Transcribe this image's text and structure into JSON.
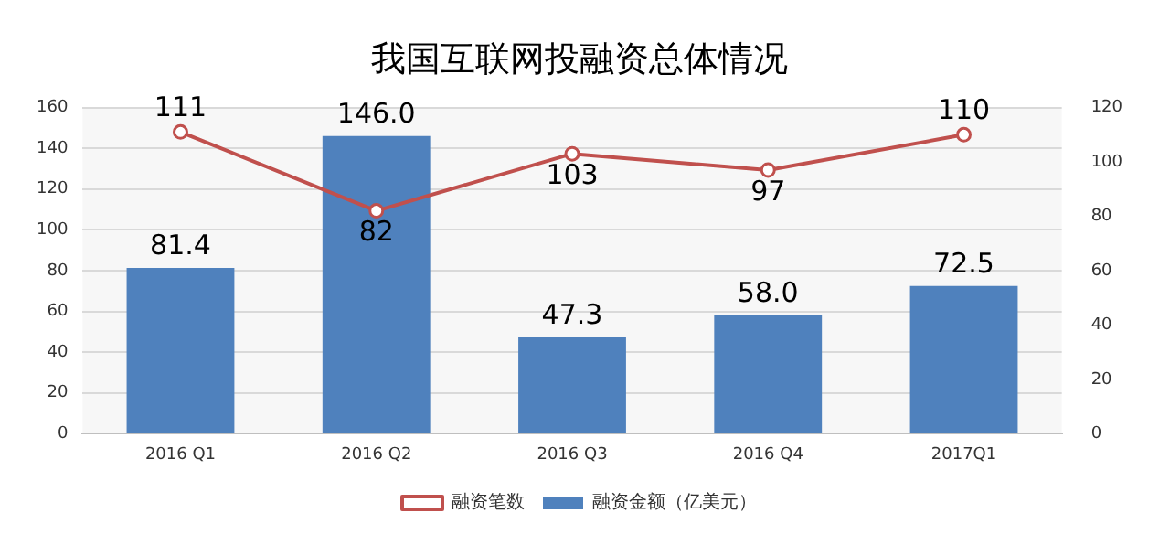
{
  "chart_data": {
    "type": "bar",
    "title": "我国互联网投融资总体情况",
    "categories": [
      "2016 Q1",
      "2016 Q2",
      "2016 Q3",
      "2016 Q4",
      "2017Q1"
    ],
    "series": [
      {
        "name": "融资金额（亿美元）",
        "color": "#4f81bd",
        "values": [
          81.4,
          146.0,
          47.3,
          58.0,
          72.5
        ],
        "value_labels": [
          "81.4",
          "146.0",
          "47.3",
          "58.0",
          "72.5"
        ]
      },
      {
        "name": "融资笔数",
        "type": "line",
        "axis": "y2",
        "color": "#c0504d",
        "marker": "circle",
        "values": [
          111,
          82,
          103,
          97,
          110
        ]
      }
    ],
    "ylim": [
      0,
      160
    ],
    "yticks": [
      0,
      20,
      40,
      60,
      80,
      100,
      120,
      140,
      160
    ],
    "y2lim": [
      0,
      120
    ],
    "y2ticks": [
      0,
      20,
      40,
      60,
      80,
      100,
      120
    ],
    "grid": "y",
    "legend": "bottom",
    "data_labels": true
  }
}
